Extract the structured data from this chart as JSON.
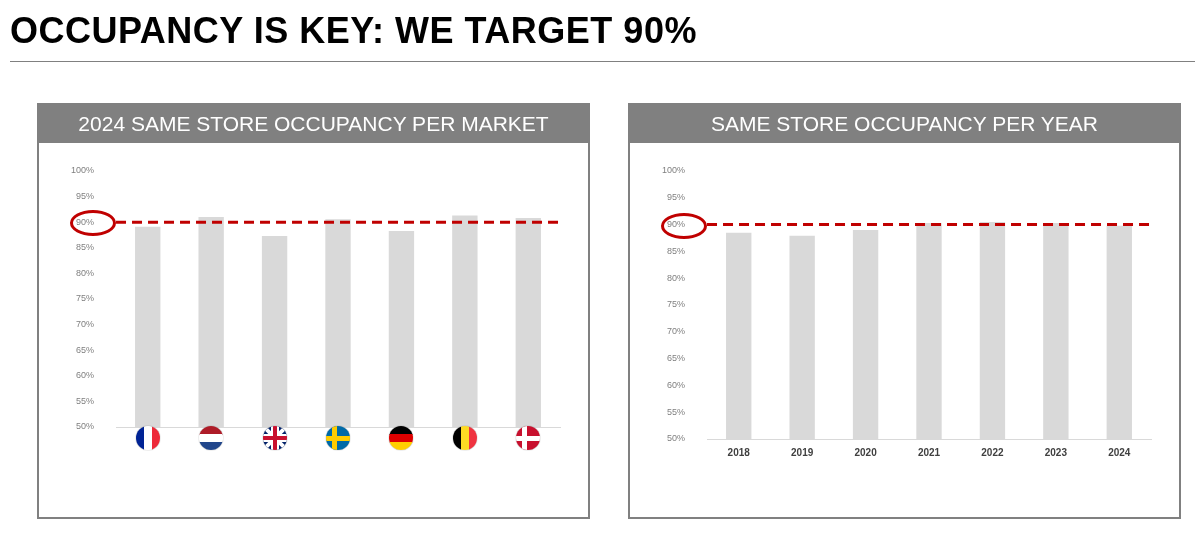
{
  "chart_data": [
    {
      "type": "bar",
      "title": "2024 SAME STORE OCCUPANCY PER MARKET",
      "annotations": [
        "OCCUPANCY IS KEY: WE TARGET 90%"
      ],
      "categories": [
        null,
        null,
        null,
        null,
        null,
        null,
        null
      ],
      "values": [
        89.1,
        91.0,
        87.3,
        90.6,
        88.3,
        91.3,
        90.8
      ],
      "color": "#d9d9d9",
      "ylim": [
        50,
        100
      ],
      "yticks": [
        {
          "value": 50,
          "label": "50%"
        },
        {
          "value": 55,
          "label": "55%"
        },
        {
          "value": 60,
          "label": "60%"
        },
        {
          "value": 65,
          "label": "65%"
        },
        {
          "value": 70,
          "label": "70%"
        },
        {
          "value": 75,
          "label": "75%"
        },
        {
          "value": 80,
          "label": "80%"
        },
        {
          "value": 85,
          "label": "85%"
        },
        {
          "value": 90,
          "label": "90%"
        },
        {
          "value": 95,
          "label": "95%"
        },
        {
          "value": 100,
          "label": "100%"
        }
      ],
      "ref_lines": [
        {
          "axis": "y",
          "value": 90,
          "color": "#c00000",
          "line_style": "dashed"
        }
      ]
    },
    {
      "type": "bar",
      "title": "SAME STORE OCCUPANCY PER YEAR",
      "categories": [
        "2018",
        "2019",
        "2020",
        "2021",
        "2022",
        "2023",
        "2024"
      ],
      "values": [
        88.5,
        87.9,
        89.0,
        90.3,
        90.5,
        90.3,
        89.8
      ],
      "color": "#d9d9d9",
      "ylim": [
        50,
        100
      ],
      "yticks": [
        {
          "value": 50,
          "label": "50%"
        },
        {
          "value": 55,
          "label": "55%"
        },
        {
          "value": 60,
          "label": "60%"
        },
        {
          "value": 65,
          "label": "65%"
        },
        {
          "value": 70,
          "label": "70%"
        },
        {
          "value": 75,
          "label": "75%"
        },
        {
          "value": 80,
          "label": "80%"
        },
        {
          "value": 85,
          "label": "85%"
        },
        {
          "value": 90,
          "label": "90%"
        },
        {
          "value": 95,
          "label": "95%"
        },
        {
          "value": 100,
          "label": "100%"
        }
      ],
      "ref_lines": [
        {
          "axis": "y",
          "value": 90,
          "color": "#c00000",
          "line_style": "dashed"
        }
      ]
    }
  ]
}
